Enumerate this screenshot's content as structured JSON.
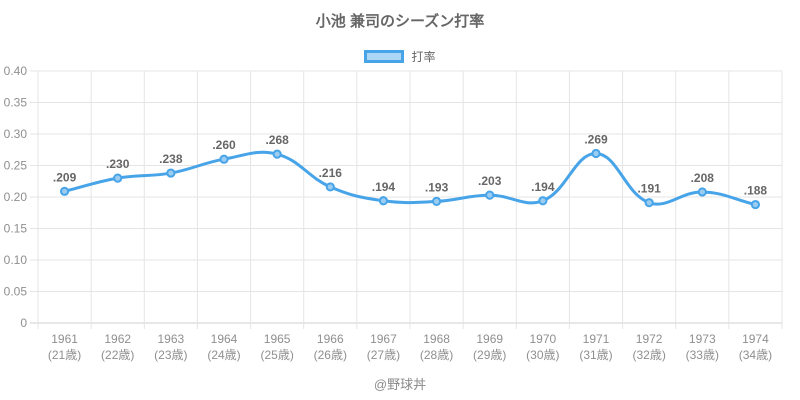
{
  "header": {
    "title": "小池 兼司のシーズン打率"
  },
  "legend": {
    "label": "打率"
  },
  "footer": {
    "credit": "@野球丼"
  },
  "chart_data": {
    "type": "line",
    "title": "小池 兼司のシーズン打率",
    "series_name": "打率",
    "categories": [
      "1961",
      "1962",
      "1963",
      "1964",
      "1965",
      "1966",
      "1967",
      "1968",
      "1969",
      "1970",
      "1971",
      "1972",
      "1973",
      "1974"
    ],
    "category_sublabels": [
      "(21歳)",
      "(22歳)",
      "(23歳)",
      "(24歳)",
      "(25歳)",
      "(26歳)",
      "(27歳)",
      "(28歳)",
      "(29歳)",
      "(30歳)",
      "(31歳)",
      "(32歳)",
      "(33歳)",
      "(34歳)"
    ],
    "values": [
      0.209,
      0.23,
      0.238,
      0.26,
      0.268,
      0.216,
      0.194,
      0.193,
      0.203,
      0.194,
      0.269,
      0.191,
      0.208,
      0.188
    ],
    "point_labels": [
      ".209",
      ".230",
      ".238",
      ".260",
      ".268",
      ".216",
      ".194",
      ".193",
      ".203",
      ".194",
      ".269",
      ".191",
      ".208",
      ".188"
    ],
    "xlabel": "",
    "ylabel": "",
    "ylim": [
      0,
      0.4
    ],
    "y_tick_step": 0.05,
    "y_tick_labels": [
      "0",
      "0.05",
      "0.10",
      "0.15",
      "0.20",
      "0.25",
      "0.30",
      "0.35",
      "0.40"
    ],
    "grid": true,
    "grid_offset": true,
    "legend_position": "top",
    "line_tension": 0.4,
    "colors": {
      "line": "#47a4e8",
      "point_fill": "#9ccdf0",
      "legend_fill": "#abd6f5",
      "grid": "#e5e5e5",
      "axis_line": "#cfcfcf",
      "title_text": "#666666",
      "tick_text": "#8f8f8f",
      "data_label_text": "#666666",
      "footer_text": "#8a8a8a"
    }
  }
}
